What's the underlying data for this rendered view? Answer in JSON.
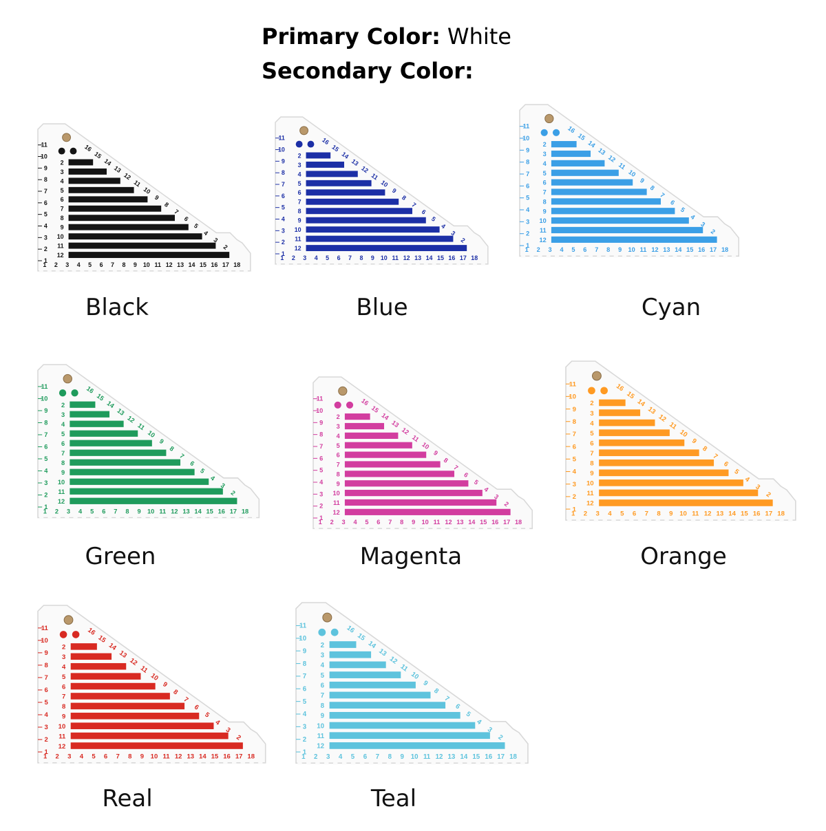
{
  "header": {
    "primary_label": "Primary Color:",
    "primary_value": "White",
    "secondary_label": "Secondary Color:"
  },
  "ruler": {
    "bottom": [
      1,
      2,
      3,
      4,
      5,
      6,
      7,
      8,
      9,
      10,
      11,
      12,
      13,
      14,
      15,
      16,
      17,
      18
    ],
    "side": [
      1,
      2,
      3,
      4,
      5,
      6,
      7,
      8,
      9,
      10,
      11
    ],
    "rows": [
      2,
      3,
      4,
      5,
      6,
      7,
      8,
      9,
      10,
      11,
      12
    ],
    "diagonal": [
      16,
      15,
      14,
      13,
      12,
      11,
      10,
      9,
      8,
      7,
      6,
      5,
      4,
      3,
      2
    ]
  },
  "items": [
    {
      "name": "Black",
      "color": "#141414"
    },
    {
      "name": "Blue",
      "color": "#1c2fa6"
    },
    {
      "name": "Cyan",
      "color": "#3b9fe6"
    },
    {
      "name": "Green",
      "color": "#1f9b5c"
    },
    {
      "name": "Magenta",
      "color": "#d23d9f"
    },
    {
      "name": "Orange",
      "color": "#ff9a22"
    },
    {
      "name": "Real",
      "color": "#d82a22"
    },
    {
      "name": "Teal",
      "color": "#5ec3dd"
    }
  ]
}
